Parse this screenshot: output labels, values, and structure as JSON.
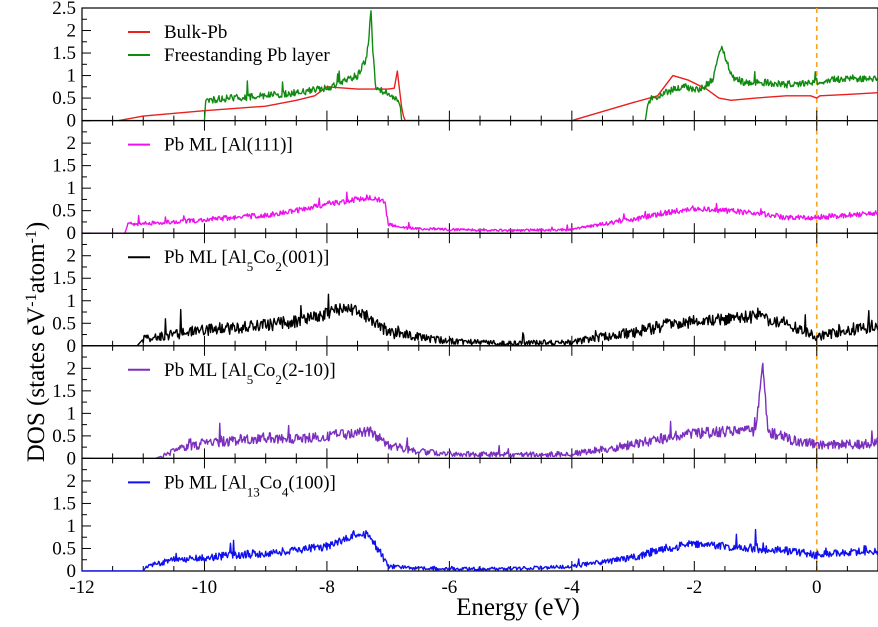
{
  "chart_data": {
    "type": "line",
    "layout": "stacked-panels",
    "xlabel": "Energy (eV)",
    "ylabel": "DOS (states eV",
    "ylabel_sup1": "-1",
    "ylabel_mid": "atom",
    "ylabel_sup2": "-1",
    "ylabel_close": ")",
    "xlim": [
      -12,
      1
    ],
    "xticks": [
      -12,
      -10,
      -8,
      -6,
      -4,
      -2,
      0
    ],
    "xtick_labels": [
      "-12",
      "-10",
      "-8",
      "-6",
      "-4",
      "-2",
      "0"
    ],
    "fermi_line": {
      "x": 0,
      "color": "#f5a623",
      "style": "dashed"
    },
    "panels": [
      {
        "ylim": [
          0,
          2.5
        ],
        "yticks": [
          0,
          0.5,
          1,
          1.5,
          2,
          2.5
        ],
        "ytick_labels": [
          "0",
          "0.5",
          "1",
          "1.5",
          "2",
          "2.5"
        ],
        "series": [
          {
            "name": "Bulk-Pb",
            "legend": {
              "main": "Bulk-Pb",
              "sub1": "",
              "mid": "",
              "sub2": "",
              "tail": ""
            },
            "color": "#e8201e",
            "x": [
              -11.4,
              -11.0,
              -10.0,
              -9.0,
              -8.5,
              -8.2,
              -8.0,
              -7.5,
              -7.0,
              -6.9,
              -6.85,
              -6.82,
              -6.78,
              -6.75,
              -6.72,
              -4.0,
              -3.5,
              -3.0,
              -2.6,
              -2.35,
              -2.1,
              -1.8,
              -1.6,
              -1.4,
              -1.0,
              -0.5,
              -0.1,
              0.0,
              0.05,
              0.5,
              1.0
            ],
            "y": [
              0.0,
              0.1,
              0.22,
              0.32,
              0.45,
              0.55,
              0.75,
              0.7,
              0.7,
              0.72,
              1.1,
              0.75,
              0.3,
              0.1,
              0.0,
              0.0,
              0.2,
              0.4,
              0.55,
              1.0,
              0.9,
              0.7,
              0.5,
              0.45,
              0.5,
              0.55,
              0.55,
              0.5,
              0.55,
              0.58,
              0.62
            ],
            "noisy": false
          },
          {
            "name": "Freestanding Pb layer",
            "legend": {
              "main": "Freestanding Pb layer",
              "sub1": "",
              "mid": "",
              "sub2": "",
              "tail": ""
            },
            "color": "#118a11",
            "x": [
              -10.0,
              -9.98,
              -9.6,
              -9.0,
              -8.5,
              -8.0,
              -7.6,
              -7.5,
              -7.35,
              -7.28,
              -7.25,
              -7.2,
              -7.1,
              -7.0,
              -6.85,
              -6.8,
              -6.78,
              -2.8,
              -2.75,
              -2.5,
              -2.2,
              -1.9,
              -1.7,
              -1.55,
              -1.4,
              -1.2,
              -0.9,
              -0.5,
              0.0,
              0.5,
              1.0
            ],
            "y": [
              0.0,
              0.45,
              0.5,
              0.55,
              0.62,
              0.72,
              0.95,
              1.0,
              1.4,
              2.4,
              1.5,
              0.7,
              0.65,
              0.6,
              0.5,
              0.3,
              0.0,
              0.0,
              0.45,
              0.6,
              0.75,
              0.7,
              0.9,
              1.65,
              1.0,
              0.85,
              0.85,
              0.8,
              0.85,
              0.95,
              0.9
            ],
            "noisy": true,
            "noise": 0.08,
            "noise_window": [
              [
                -9.98,
                -6.85
              ],
              [
                -2.75,
                1.0
              ]
            ]
          }
        ]
      },
      {
        "ylim": [
          0,
          2.5
        ],
        "yticks": [
          0,
          0.5,
          1,
          1.5,
          2
        ],
        "ytick_labels": [
          "0",
          "0.5",
          "1",
          "1.5",
          "2"
        ],
        "series": [
          {
            "name": "Pb ML [Al(111)]",
            "legend": {
              "main": "Pb ML [Al(111)]",
              "sub1": "",
              "mid": "",
              "sub2": "",
              "tail": ""
            },
            "color": "#ee11ee",
            "x": [
              -11.3,
              -11.25,
              -10.5,
              -10.0,
              -9.5,
              -9.0,
              -8.5,
              -8.0,
              -7.5,
              -7.3,
              -7.05,
              -7.0,
              -6.8,
              -6.0,
              -5.0,
              -4.0,
              -3.5,
              -3.0,
              -2.5,
              -2.0,
              -1.5,
              -1.0,
              -0.5,
              0.0,
              0.5,
              1.0
            ],
            "y": [
              0.0,
              0.2,
              0.25,
              0.3,
              0.35,
              0.4,
              0.5,
              0.65,
              0.75,
              0.8,
              0.7,
              0.2,
              0.12,
              0.08,
              0.06,
              0.08,
              0.2,
              0.3,
              0.45,
              0.55,
              0.5,
              0.45,
              0.35,
              0.35,
              0.4,
              0.45
            ],
            "noisy": true,
            "noise": 0.06,
            "noise_window": [
              [
                -11.25,
                1.0
              ]
            ]
          }
        ]
      },
      {
        "ylim": [
          0,
          2.5
        ],
        "yticks": [
          0,
          0.5,
          1,
          1.5,
          2
        ],
        "ytick_labels": [
          "0",
          "0.5",
          "1",
          "1.5",
          "2"
        ],
        "series": [
          {
            "name": "Pb ML [Al5Co2(001)]",
            "legend": {
              "main": "Pb ML [Al",
              "sub1": "5",
              "mid": "Co",
              "sub2": "2",
              "tail": "(001)]"
            },
            "color": "#000000",
            "x": [
              -11.1,
              -11.0,
              -10.5,
              -10.0,
              -9.5,
              -9.0,
              -8.5,
              -8.0,
              -7.7,
              -7.5,
              -7.2,
              -7.0,
              -6.5,
              -6.0,
              -5.0,
              -4.0,
              -3.5,
              -3.0,
              -2.5,
              -2.0,
              -1.5,
              -1.0,
              -0.5,
              0.0,
              0.5,
              1.0
            ],
            "y": [
              0.0,
              0.15,
              0.25,
              0.35,
              0.4,
              0.45,
              0.55,
              0.7,
              0.85,
              0.8,
              0.5,
              0.3,
              0.2,
              0.1,
              0.05,
              0.08,
              0.2,
              0.3,
              0.45,
              0.55,
              0.6,
              0.65,
              0.5,
              0.2,
              0.35,
              0.45
            ],
            "noisy": true,
            "noise": 0.14,
            "noise_window": [
              [
                -11.0,
                1.0
              ]
            ]
          }
        ]
      },
      {
        "ylim": [
          0,
          2.5
        ],
        "yticks": [
          0,
          0.5,
          1,
          1.5,
          2
        ],
        "ytick_labels": [
          "0",
          "0.5",
          "1",
          "1.5",
          "2"
        ],
        "series": [
          {
            "name": "Pb ML [Al5Co2(2-10)]",
            "legend": {
              "main": "Pb ML [Al",
              "sub1": "5",
              "mid": "Co",
              "sub2": "2",
              "tail": "(2-10)]"
            },
            "color": "#7b2fbe",
            "x": [
              -10.8,
              -10.7,
              -10.4,
              -10.0,
              -9.5,
              -9.0,
              -8.5,
              -8.0,
              -7.5,
              -7.3,
              -7.0,
              -6.5,
              -6.0,
              -5.0,
              -4.0,
              -3.5,
              -3.0,
              -2.5,
              -2.0,
              -1.5,
              -1.0,
              -0.88,
              -0.8,
              -0.5,
              0.0,
              0.5,
              1.0
            ],
            "y": [
              0.0,
              0.05,
              0.2,
              0.35,
              0.4,
              0.45,
              0.45,
              0.5,
              0.55,
              0.6,
              0.3,
              0.15,
              0.1,
              0.08,
              0.1,
              0.2,
              0.3,
              0.45,
              0.55,
              0.6,
              0.6,
              2.1,
              0.6,
              0.45,
              0.3,
              0.3,
              0.35
            ],
            "noisy": true,
            "noise": 0.12,
            "noise_window": [
              [
                -10.7,
                1.0
              ]
            ]
          }
        ]
      },
      {
        "ylim": [
          0,
          2.5
        ],
        "yticks": [
          0,
          0.5,
          1,
          1.5,
          2
        ],
        "ytick_labels": [
          "0",
          "0.5",
          "1",
          "1.5",
          "2"
        ],
        "series": [
          {
            "name": "Pb ML [Al13Co4(100)]",
            "legend": {
              "main": "Pb ML [Al",
              "sub1": "13",
              "mid": "Co",
              "sub2": "4",
              "tail": "(100)]"
            },
            "color": "#1010ee",
            "x": [
              -11.0,
              -10.95,
              -10.5,
              -10.0,
              -9.5,
              -9.0,
              -8.5,
              -8.0,
              -7.7,
              -7.5,
              -7.3,
              -7.0,
              -6.5,
              -6.0,
              -5.0,
              -4.0,
              -3.5,
              -3.0,
              -2.5,
              -2.0,
              -1.5,
              -1.0,
              -0.5,
              0.0,
              0.5,
              1.0
            ],
            "y": [
              0.0,
              0.1,
              0.25,
              0.3,
              0.35,
              0.4,
              0.45,
              0.55,
              0.7,
              0.85,
              0.8,
              0.1,
              0.06,
              0.05,
              0.05,
              0.1,
              0.2,
              0.3,
              0.5,
              0.6,
              0.55,
              0.5,
              0.45,
              0.35,
              0.4,
              0.45
            ],
            "noisy": true,
            "noise": 0.09,
            "noise_window": [
              [
                -10.95,
                1.0
              ]
            ]
          }
        ]
      }
    ]
  }
}
